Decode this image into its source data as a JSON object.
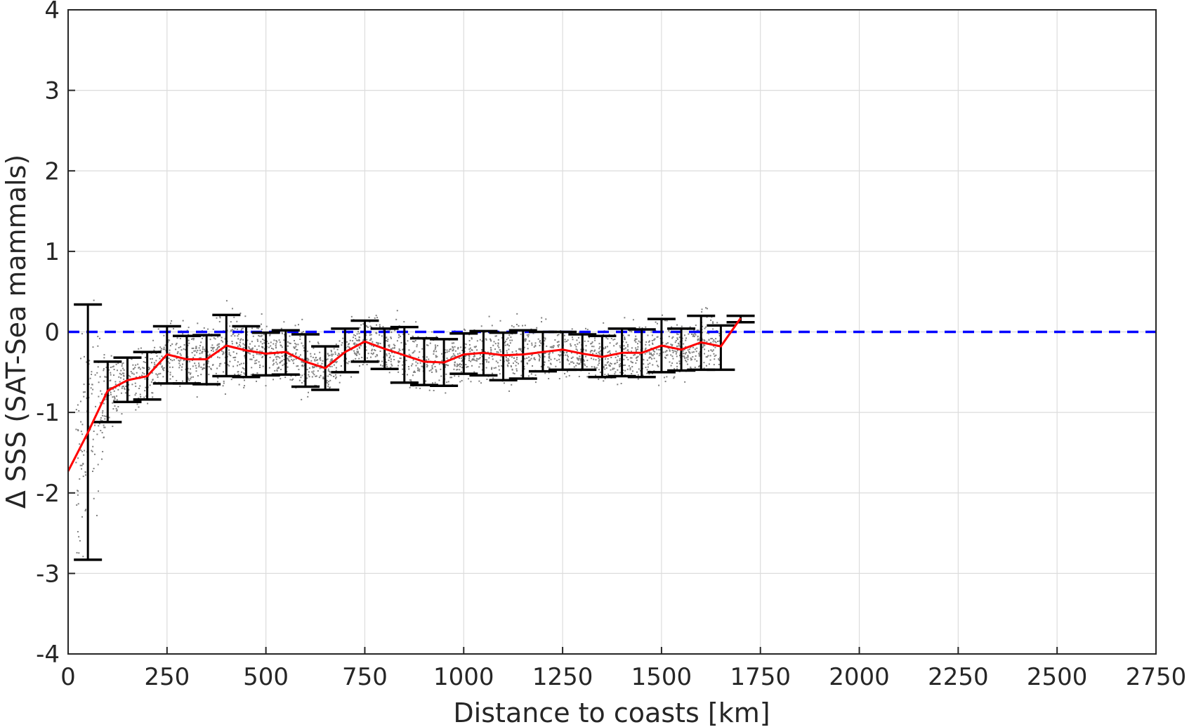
{
  "chart_data": {
    "type": "scatter",
    "xlabel": "Distance to coasts [km]",
    "ylabel": "Δ SSS (SAT-Sea mammals)",
    "xlim": [
      0,
      2750
    ],
    "ylim": [
      -4,
      4
    ],
    "xticks": [
      0,
      250,
      500,
      750,
      1000,
      1250,
      1500,
      1750,
      2000,
      2250,
      2500,
      2750
    ],
    "yticks": [
      -4,
      -3,
      -2,
      -1,
      0,
      1,
      2,
      3,
      4
    ],
    "grid": true,
    "reference_line": {
      "y": 0,
      "style": "dashed",
      "color": "#0000ff"
    },
    "colors": {
      "mean_line": "#ff0000",
      "error_bars": "#000000",
      "scatter": "#808080"
    },
    "mean_series": {
      "x": [
        0,
        50,
        100,
        150,
        200,
        250,
        300,
        350,
        400,
        450,
        500,
        550,
        600,
        650,
        700,
        750,
        800,
        850,
        900,
        950,
        1000,
        1050,
        1100,
        1150,
        1200,
        1250,
        1300,
        1350,
        1400,
        1450,
        1500,
        1550,
        1600,
        1650,
        1700
      ],
      "y": [
        -1.73,
        -1.25,
        -0.73,
        -0.6,
        -0.55,
        -0.28,
        -0.34,
        -0.34,
        -0.17,
        -0.23,
        -0.27,
        -0.25,
        -0.37,
        -0.45,
        -0.25,
        -0.12,
        -0.21,
        -0.29,
        -0.37,
        -0.38,
        -0.28,
        -0.26,
        -0.29,
        -0.28,
        -0.25,
        -0.22,
        -0.27,
        -0.31,
        -0.26,
        -0.26,
        -0.17,
        -0.22,
        -0.13,
        -0.18,
        0.17
      ]
    },
    "error_bars": {
      "x": [
        50,
        100,
        150,
        200,
        250,
        300,
        350,
        400,
        450,
        500,
        550,
        600,
        650,
        700,
        750,
        800,
        850,
        900,
        950,
        1000,
        1050,
        1100,
        1150,
        1200,
        1250,
        1300,
        1350,
        1400,
        1450,
        1500,
        1550,
        1600,
        1650,
        1700
      ],
      "lower": [
        -2.83,
        -1.12,
        -0.87,
        -0.84,
        -0.64,
        -0.64,
        -0.65,
        -0.55,
        -0.56,
        -0.54,
        -0.53,
        -0.68,
        -0.72,
        -0.5,
        -0.37,
        -0.46,
        -0.63,
        -0.66,
        -0.67,
        -0.52,
        -0.54,
        -0.6,
        -0.58,
        -0.49,
        -0.47,
        -0.47,
        -0.56,
        -0.55,
        -0.56,
        -0.5,
        -0.48,
        -0.47,
        -0.47,
        0.12
      ],
      "upper": [
        0.34,
        -0.37,
        -0.32,
        -0.25,
        0.07,
        -0.05,
        -0.04,
        0.21,
        0.07,
        -0.01,
        0.02,
        -0.03,
        -0.18,
        0.04,
        0.14,
        0.04,
        0.06,
        -0.08,
        -0.09,
        -0.02,
        0.01,
        -0.01,
        0.02,
        0.0,
        0.0,
        -0.03,
        -0.05,
        0.04,
        0.03,
        0.16,
        0.04,
        0.2,
        0.08,
        0.2
      ]
    }
  }
}
